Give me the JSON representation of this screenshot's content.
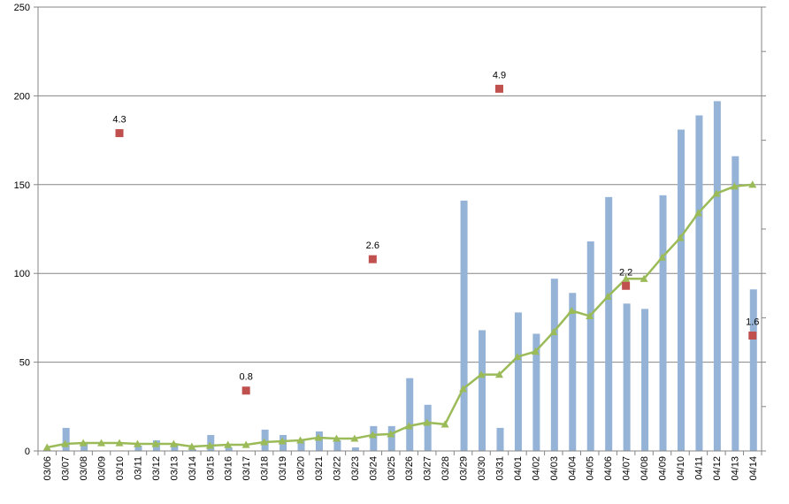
{
  "chart_data": {
    "type": "bar",
    "categories": [
      "03/06",
      "03/07",
      "03/08",
      "03/09",
      "03/10",
      "03/11",
      "03/12",
      "03/13",
      "03/14",
      "03/15",
      "03/16",
      "03/17",
      "03/18",
      "03/19",
      "03/20",
      "03/21",
      "03/22",
      "03/23",
      "03/24",
      "03/25",
      "03/26",
      "03/27",
      "03/28",
      "03/29",
      "03/30",
      "03/31",
      "04/01",
      "04/02",
      "04/03",
      "04/04",
      "04/05",
      "04/06",
      "04/07",
      "04/08",
      "04/09",
      "04/10",
      "04/11",
      "04/12",
      "04/13",
      "04/14"
    ],
    "y_ticks": [
      "0",
      "50",
      "100",
      "150",
      "200",
      "250"
    ],
    "ylim": [
      0,
      250
    ],
    "grid": true,
    "colors": {
      "bar": "#95b3d7",
      "line": "#9bbb59",
      "marker": "#c0504d",
      "grid": "#868686",
      "axis": "#868686"
    },
    "series": [
      {
        "type": "bar",
        "values": [
          0,
          13,
          5,
          0,
          0,
          3,
          6,
          4,
          1,
          9,
          2,
          0,
          12,
          9,
          6,
          11,
          6,
          2,
          14,
          14,
          41,
          26,
          0,
          141,
          68,
          13,
          78,
          66,
          97,
          89,
          118,
          143,
          83,
          80,
          144,
          181,
          189,
          197,
          166,
          91
        ]
      },
      {
        "type": "line",
        "values": [
          2,
          4,
          4.5,
          4.5,
          4.5,
          4,
          4,
          4,
          2.5,
          3,
          3.5,
          3.5,
          5,
          5.5,
          6,
          7.5,
          7,
          7,
          9,
          9.5,
          14,
          16,
          15,
          35,
          43,
          43,
          53,
          56,
          67,
          79,
          76,
          87,
          97,
          97,
          109,
          120,
          134,
          145,
          149,
          150
        ]
      },
      {
        "type": "scatter",
        "points": [
          {
            "category": "03/10",
            "value": 179,
            "label": "4.3"
          },
          {
            "category": "03/17",
            "value": 34,
            "label": "0.8"
          },
          {
            "category": "03/24",
            "value": 108,
            "label": "2.6"
          },
          {
            "category": "03/31",
            "value": 204,
            "label": "4.9"
          },
          {
            "category": "04/07",
            "value": 93,
            "label": "2.2"
          },
          {
            "category": "04/14",
            "value": 65,
            "label": "1.6"
          }
        ]
      }
    ]
  }
}
